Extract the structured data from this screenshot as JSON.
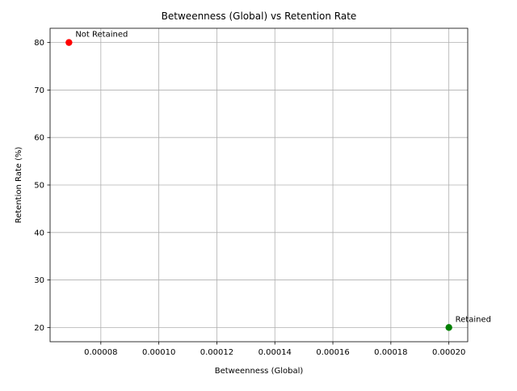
{
  "chart_data": {
    "type": "scatter",
    "title": "Betweenness (Global) vs Retention Rate",
    "xlabel": "Betweenness (Global)",
    "ylabel": "Retention Rate (%)",
    "xlim": [
      6.25e-05,
      0.0002065
    ],
    "ylim": [
      17,
      83
    ],
    "grid": true,
    "x_ticks": [
      {
        "value": 8e-05,
        "label": "0.00008"
      },
      {
        "value": 0.0001,
        "label": "0.00010"
      },
      {
        "value": 0.00012,
        "label": "0.00012"
      },
      {
        "value": 0.00014,
        "label": "0.00014"
      },
      {
        "value": 0.00016,
        "label": "0.00016"
      },
      {
        "value": 0.00018,
        "label": "0.00018"
      },
      {
        "value": 0.0002,
        "label": "0.00020"
      }
    ],
    "y_ticks": [
      {
        "value": 20,
        "label": "20"
      },
      {
        "value": 30,
        "label": "30"
      },
      {
        "value": 40,
        "label": "40"
      },
      {
        "value": 50,
        "label": "50"
      },
      {
        "value": 60,
        "label": "60"
      },
      {
        "value": 70,
        "label": "70"
      },
      {
        "value": 80,
        "label": "80"
      }
    ],
    "points": [
      {
        "x": 6.9e-05,
        "y": 80,
        "label": "Not Retained",
        "color": "#ff0000"
      },
      {
        "x": 0.0002,
        "y": 20,
        "label": "Retained",
        "color": "#008000"
      }
    ]
  }
}
